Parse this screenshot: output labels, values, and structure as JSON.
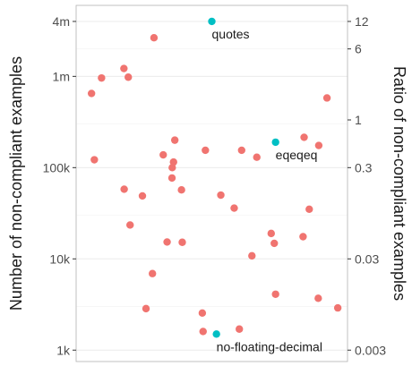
{
  "chart_data": {
    "type": "scatter",
    "y_scale": "log",
    "y_ticks": [
      {
        "value": 1000,
        "label": "1k"
      },
      {
        "value": 10000,
        "label": "10k"
      },
      {
        "value": 100000,
        "label": "100k"
      },
      {
        "value": 1000000,
        "label": "1m"
      },
      {
        "value": 4000000,
        "label": "4m"
      }
    ],
    "y2_ticks": [
      {
        "value": 12,
        "label": "12"
      },
      {
        "value": 6,
        "label": "6"
      },
      {
        "value": 1,
        "label": "1"
      },
      {
        "value": 0.3,
        "label": "0.3"
      },
      {
        "value": 0.03,
        "label": "0.03"
      },
      {
        "value": 0.003,
        "label": "0.003"
      }
    ],
    "ylim": [
      750,
      6000000
    ],
    "y2_per_y": 3e-06,
    "xlim": [
      0,
      1
    ],
    "ylabel": "Number of non-compliant examples",
    "y2label": "Ratio of non-compliant examples",
    "grid": true,
    "colors": {
      "default": "#f07470",
      "highlight": "#00bfc4"
    },
    "points": [
      {
        "x": 0.5,
        "y": 4000000,
        "highlight": true
      },
      {
        "x": 0.748,
        "y": 190000,
        "highlight": true
      },
      {
        "x": 0.518,
        "y": 1500,
        "highlight": true
      },
      {
        "x": 0.275,
        "y": 2650000
      },
      {
        "x": 0.158,
        "y": 1220000
      },
      {
        "x": 0.175,
        "y": 980000
      },
      {
        "x": 0.071,
        "y": 960000
      },
      {
        "x": 0.032,
        "y": 650000
      },
      {
        "x": 0.948,
        "y": 580000
      },
      {
        "x": 0.859,
        "y": 215000
      },
      {
        "x": 0.916,
        "y": 175000
      },
      {
        "x": 0.356,
        "y": 200000
      },
      {
        "x": 0.475,
        "y": 155000
      },
      {
        "x": 0.616,
        "y": 155000
      },
      {
        "x": 0.311,
        "y": 138000
      },
      {
        "x": 0.675,
        "y": 130000
      },
      {
        "x": 0.351,
        "y": 115000
      },
      {
        "x": 0.346,
        "y": 100000
      },
      {
        "x": 0.043,
        "y": 122000
      },
      {
        "x": 0.345,
        "y": 77000
      },
      {
        "x": 0.382,
        "y": 57000
      },
      {
        "x": 0.159,
        "y": 58000
      },
      {
        "x": 0.23,
        "y": 49000
      },
      {
        "x": 0.535,
        "y": 50000
      },
      {
        "x": 0.587,
        "y": 36000
      },
      {
        "x": 0.879,
        "y": 35000
      },
      {
        "x": 0.182,
        "y": 23500
      },
      {
        "x": 0.731,
        "y": 19000
      },
      {
        "x": 0.855,
        "y": 17500
      },
      {
        "x": 0.326,
        "y": 15300
      },
      {
        "x": 0.385,
        "y": 15200
      },
      {
        "x": 0.743,
        "y": 14800
      },
      {
        "x": 0.656,
        "y": 10800
      },
      {
        "x": 0.269,
        "y": 6900
      },
      {
        "x": 0.748,
        "y": 4100
      },
      {
        "x": 0.914,
        "y": 3700
      },
      {
        "x": 0.99,
        "y": 2900
      },
      {
        "x": 0.244,
        "y": 2850
      },
      {
        "x": 0.463,
        "y": 2550
      },
      {
        "x": 0.607,
        "y": 1700
      },
      {
        "x": 0.466,
        "y": 1600
      }
    ],
    "annotations": [
      {
        "text": "quotes",
        "x": 0.5,
        "y": 4000000
      },
      {
        "text": "eqeqeq",
        "x": 0.748,
        "y": 190000
      },
      {
        "text": "no-floating-decimal",
        "x": 0.518,
        "y": 1500
      }
    ]
  }
}
